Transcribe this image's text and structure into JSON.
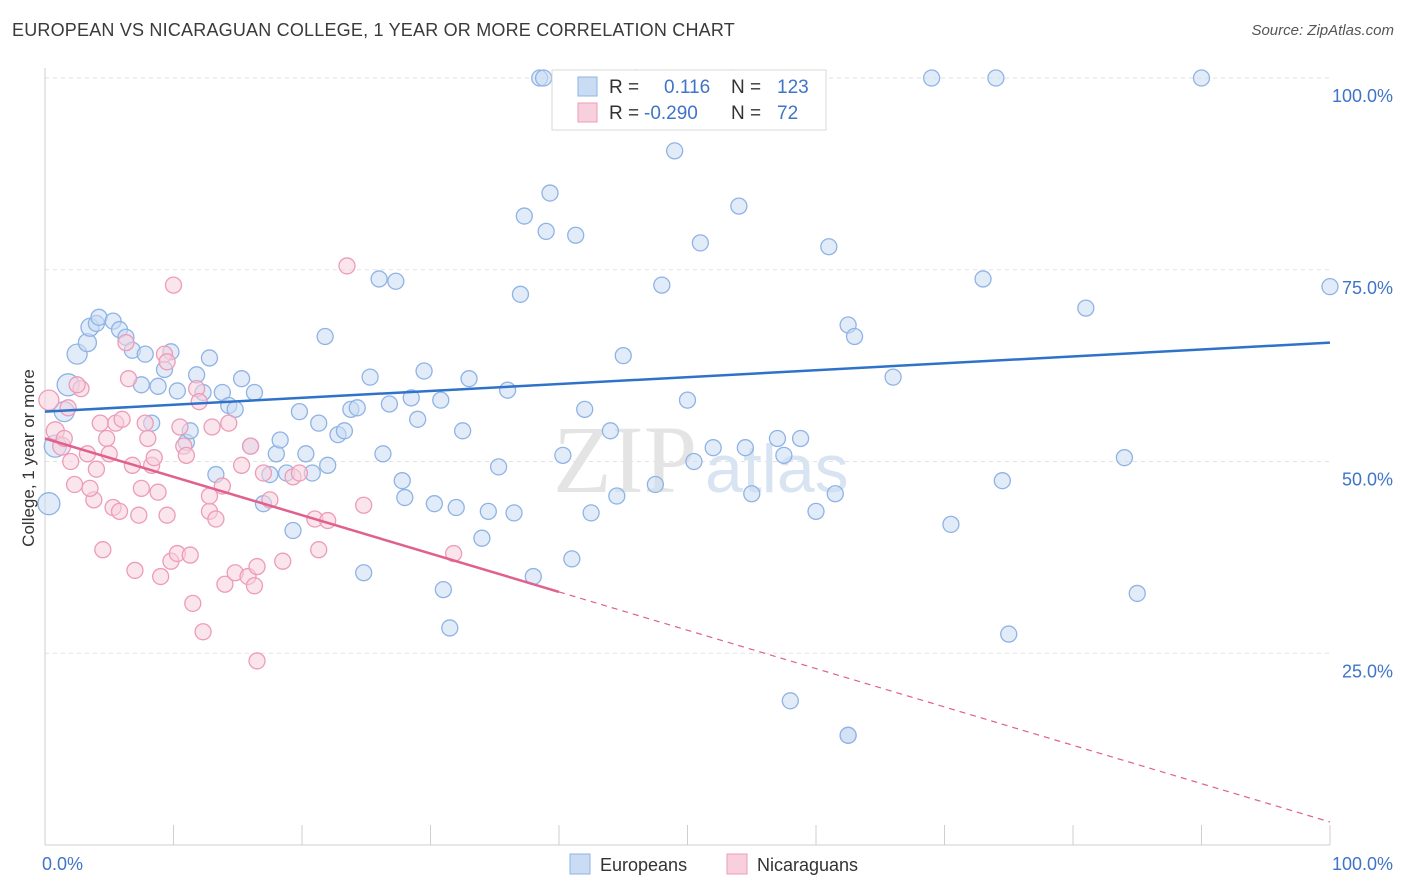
{
  "header": {
    "title": "EUROPEAN VS NICARAGUAN COLLEGE, 1 YEAR OR MORE CORRELATION CHART",
    "source": "Source: ZipAtlas.com"
  },
  "watermark": {
    "zip": "ZIP",
    "atlas": "atlas"
  },
  "stats_box": {
    "rows": [
      {
        "r_label": "R =",
        "r_value": "0.116",
        "n_label": "N =",
        "n_value": "123",
        "color": "#9ec0ee"
      },
      {
        "r_label": "R =",
        "r_value": "-0.290",
        "n_label": "N =",
        "n_value": "72",
        "color": "#f5adc4"
      }
    ]
  },
  "colors": {
    "europeans_fill": "#c9dcf3",
    "europeans_stroke": "#8fb3e6",
    "europeans_line": "#2f72c9",
    "nicaraguans_fill": "#f8d0dd",
    "nicaraguans_stroke": "#ee9bb7",
    "nicaraguans_line": "#e0608e",
    "tick_text": "#3f74c8",
    "grid": "#e2e2e2"
  },
  "chart_data": {
    "type": "scatter",
    "title": "EUROPEAN VS NICARAGUAN COLLEGE, 1 YEAR OR MORE CORRELATION CHART",
    "xlabel": "",
    "ylabel": "College, 1 year or more",
    "xlim": [
      0,
      100
    ],
    "ylim": [
      0,
      100
    ],
    "x_tick_labels": [
      "0.0%",
      "100.0%"
    ],
    "y_tick_labels": [
      "25.0%",
      "50.0%",
      "75.0%",
      "100.0%"
    ],
    "y_ticks": [
      25,
      50,
      75,
      100
    ],
    "grid": true,
    "legend_position": "bottom-center",
    "series": [
      {
        "name": "Europeans",
        "r": 0.116,
        "n": 123,
        "trend": {
          "x": [
            0,
            100
          ],
          "y": [
            56.5,
            65.5
          ],
          "dashed_after": null
        },
        "points": [
          [
            0.3,
            44.5,
            22
          ],
          [
            0.8,
            52,
            22
          ],
          [
            1.5,
            56.5,
            20
          ],
          [
            1.8,
            60,
            22
          ],
          [
            2.5,
            64,
            20
          ],
          [
            3.3,
            65.5,
            18
          ],
          [
            3.5,
            67.5,
            18
          ],
          [
            4.0,
            68,
            16
          ],
          [
            4.2,
            68.8,
            16
          ],
          [
            5.3,
            68.3,
            16
          ],
          [
            5.8,
            67.2,
            16
          ],
          [
            6.3,
            66.2,
            16
          ],
          [
            6.8,
            64.5,
            16
          ],
          [
            7.5,
            60,
            16
          ],
          [
            7.8,
            64,
            16
          ],
          [
            8.3,
            55,
            16
          ],
          [
            8.8,
            59.8,
            16
          ],
          [
            9.3,
            62,
            16
          ],
          [
            9.8,
            64.3,
            16
          ],
          [
            10.3,
            59.2,
            16
          ],
          [
            11.0,
            52.5,
            16
          ],
          [
            11.3,
            54,
            16
          ],
          [
            11.8,
            61.3,
            16
          ],
          [
            12.3,
            59,
            16
          ],
          [
            12.8,
            63.5,
            16
          ],
          [
            13.3,
            48.3,
            16
          ],
          [
            13.8,
            59,
            16
          ],
          [
            14.3,
            57.3,
            16
          ],
          [
            14.8,
            56.8,
            16
          ],
          [
            15.3,
            60.8,
            16
          ],
          [
            16.3,
            59,
            16
          ],
          [
            16.0,
            52,
            16
          ],
          [
            17.0,
            44.5,
            16
          ],
          [
            17.5,
            48.3,
            16
          ],
          [
            18.0,
            51,
            16
          ],
          [
            18.3,
            52.8,
            16
          ],
          [
            18.8,
            48.5,
            16
          ],
          [
            19.3,
            41,
            16
          ],
          [
            19.8,
            56.5,
            16
          ],
          [
            20.3,
            51,
            16
          ],
          [
            20.8,
            48.5,
            16
          ],
          [
            21.3,
            55,
            16
          ],
          [
            21.8,
            66.3,
            16
          ],
          [
            22.0,
            49.5,
            16
          ],
          [
            22.8,
            53.5,
            16
          ],
          [
            23.3,
            54,
            16
          ],
          [
            23.8,
            56.8,
            16
          ],
          [
            24.3,
            57,
            16
          ],
          [
            24.8,
            35.5,
            16
          ],
          [
            25.3,
            61,
            16
          ],
          [
            26.0,
            73.8,
            16
          ],
          [
            26.3,
            51,
            16
          ],
          [
            26.8,
            57.5,
            16
          ],
          [
            27.3,
            73.5,
            16
          ],
          [
            27.8,
            47.5,
            16
          ],
          [
            28.0,
            45.3,
            16
          ],
          [
            28.5,
            58.3,
            16
          ],
          [
            29.0,
            55.5,
            16
          ],
          [
            29.5,
            61.8,
            16
          ],
          [
            30.3,
            44.5,
            16
          ],
          [
            30.8,
            58,
            16
          ],
          [
            31.0,
            33.3,
            16
          ],
          [
            31.5,
            28.3,
            16
          ],
          [
            32.0,
            44,
            16
          ],
          [
            32.5,
            54,
            16
          ],
          [
            33.0,
            60.8,
            16
          ],
          [
            34.0,
            40,
            16
          ],
          [
            34.5,
            43.5,
            16
          ],
          [
            35.3,
            49.3,
            16
          ],
          [
            36.0,
            59.3,
            16
          ],
          [
            36.5,
            43.3,
            16
          ],
          [
            37.0,
            71.8,
            16
          ],
          [
            37.3,
            82,
            16
          ],
          [
            38.0,
            35,
            16
          ],
          [
            38.5,
            100,
            16
          ],
          [
            38.8,
            100,
            16
          ],
          [
            39.0,
            80,
            16
          ],
          [
            39.3,
            85,
            16
          ],
          [
            40.3,
            50.8,
            16
          ],
          [
            41.0,
            37.3,
            16
          ],
          [
            41.3,
            79.5,
            16
          ],
          [
            42.0,
            56.8,
            16
          ],
          [
            42.5,
            43.3,
            16
          ],
          [
            43.0,
            100,
            16
          ],
          [
            44.0,
            54,
            16
          ],
          [
            44.5,
            45.5,
            16
          ],
          [
            45.0,
            63.8,
            16
          ],
          [
            46.0,
            100,
            16
          ],
          [
            47.5,
            47,
            16
          ],
          [
            48.0,
            73,
            16
          ],
          [
            49.0,
            90.5,
            16
          ],
          [
            50.0,
            58,
            16
          ],
          [
            50.5,
            50,
            16
          ],
          [
            51.0,
            78.5,
            16
          ],
          [
            52.0,
            51.8,
            16
          ],
          [
            53.5,
            100,
            16
          ],
          [
            54.0,
            83.3,
            16
          ],
          [
            54.5,
            51.8,
            16
          ],
          [
            55.0,
            45.8,
            16
          ],
          [
            57.0,
            53,
            16
          ],
          [
            57.5,
            50.8,
            16
          ],
          [
            58.8,
            53,
            16
          ],
          [
            60.0,
            43.5,
            16
          ],
          [
            61.0,
            78,
            16
          ],
          [
            61.5,
            45.8,
            16
          ],
          [
            62.5,
            67.8,
            16
          ],
          [
            63.0,
            66.3,
            16
          ],
          [
            66.0,
            61,
            16
          ],
          [
            69.0,
            100,
            16
          ],
          [
            70.5,
            41.8,
            16
          ],
          [
            73.0,
            73.8,
            16
          ],
          [
            74.0,
            100,
            16
          ],
          [
            74.5,
            47.5,
            16
          ],
          [
            75.0,
            27.5,
            16
          ],
          [
            81.0,
            70,
            16
          ],
          [
            84.0,
            50.5,
            16
          ],
          [
            85.0,
            32.8,
            16
          ],
          [
            90.0,
            100,
            16
          ],
          [
            100.0,
            72.8,
            16
          ],
          [
            62.5,
            14.3,
            16
          ],
          [
            58.0,
            18.8,
            16
          ],
          [
            62.5,
            14.3,
            16
          ]
        ]
      },
      {
        "name": "Nicaraguans",
        "r": -0.29,
        "n": 72,
        "trend": {
          "x": [
            0,
            40
          ],
          "y": [
            53,
            33
          ],
          "dashed_extension": {
            "x": [
              40,
              100
            ],
            "y": [
              33,
              3
            ]
          }
        },
        "points": [
          [
            0.3,
            58,
            20
          ],
          [
            0.8,
            54,
            18
          ],
          [
            1.3,
            52,
            18
          ],
          [
            1.5,
            53,
            16
          ],
          [
            1.8,
            57,
            16
          ],
          [
            2.0,
            50,
            16
          ],
          [
            2.3,
            47,
            16
          ],
          [
            2.8,
            59.5,
            16
          ],
          [
            3.3,
            51,
            16
          ],
          [
            3.8,
            45,
            16
          ],
          [
            4.0,
            49,
            16
          ],
          [
            4.3,
            55,
            16
          ],
          [
            4.8,
            53,
            16
          ],
          [
            3.5,
            46.5,
            16
          ],
          [
            4.5,
            38.5,
            16
          ],
          [
            5.0,
            51,
            16
          ],
          [
            5.3,
            44,
            16
          ],
          [
            5.5,
            55,
            16
          ],
          [
            5.8,
            43.5,
            16
          ],
          [
            6.0,
            55.5,
            16
          ],
          [
            6.3,
            65.5,
            16
          ],
          [
            6.8,
            49.5,
            16
          ],
          [
            7.0,
            35.8,
            16
          ],
          [
            7.3,
            43,
            16
          ],
          [
            7.5,
            46.5,
            16
          ],
          [
            7.8,
            55,
            16
          ],
          [
            8.0,
            53,
            16
          ],
          [
            8.3,
            49.5,
            16
          ],
          [
            8.5,
            50.5,
            16
          ],
          [
            8.8,
            46,
            16
          ],
          [
            9.0,
            35,
            16
          ],
          [
            9.3,
            64,
            16
          ],
          [
            9.5,
            63,
            16
          ],
          [
            9.8,
            37,
            16
          ],
          [
            10.0,
            73,
            16
          ],
          [
            10.3,
            38,
            16
          ],
          [
            10.5,
            54.5,
            16
          ],
          [
            10.8,
            52,
            16
          ],
          [
            11.0,
            50.8,
            16
          ],
          [
            11.3,
            37.8,
            16
          ],
          [
            11.5,
            31.5,
            16
          ],
          [
            11.8,
            59.5,
            16
          ],
          [
            12.0,
            57.8,
            16
          ],
          [
            12.3,
            27.8,
            16
          ],
          [
            12.8,
            43.5,
            16
          ],
          [
            13.0,
            54.5,
            16
          ],
          [
            13.3,
            42.5,
            16
          ],
          [
            13.8,
            46.8,
            16
          ],
          [
            14.0,
            34,
            16
          ],
          [
            14.3,
            55,
            16
          ],
          [
            14.8,
            35.5,
            16
          ],
          [
            15.3,
            49.5,
            16
          ],
          [
            15.8,
            35,
            16
          ],
          [
            16.3,
            33.8,
            16
          ],
          [
            16.5,
            36.3,
            16
          ],
          [
            16.5,
            24,
            16
          ],
          [
            17.0,
            48.5,
            16
          ],
          [
            17.5,
            45,
            16
          ],
          [
            18.5,
            37,
            16
          ],
          [
            19.3,
            48,
            16
          ],
          [
            19.8,
            48.5,
            16
          ],
          [
            21.0,
            42.5,
            16
          ],
          [
            21.3,
            38.5,
            16
          ],
          [
            23.5,
            75.5,
            16
          ],
          [
            22.0,
            42.3,
            16
          ],
          [
            2.5,
            60,
            16
          ],
          [
            6.5,
            60.8,
            16
          ],
          [
            9.5,
            43,
            16
          ],
          [
            16.0,
            52,
            16
          ],
          [
            31.8,
            38,
            16
          ],
          [
            24.8,
            44.3,
            16
          ],
          [
            12.8,
            45.5,
            16
          ]
        ]
      }
    ]
  },
  "legend": {
    "items": [
      {
        "label": "Europeans"
      },
      {
        "label": "Nicaraguans"
      }
    ]
  }
}
